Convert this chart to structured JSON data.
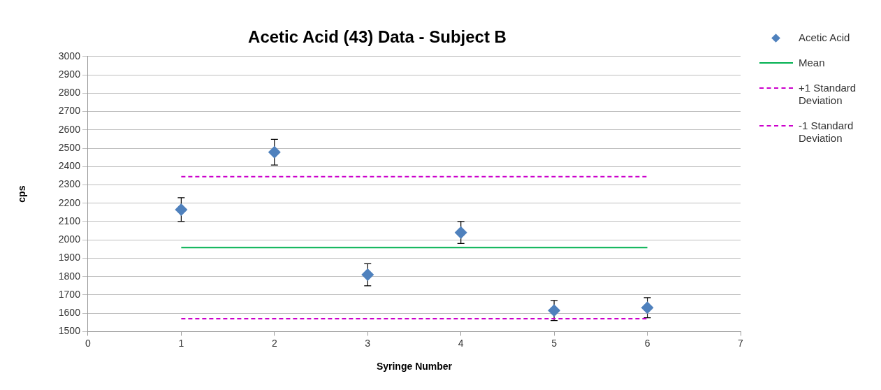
{
  "chart_data": {
    "type": "scatter",
    "title": "Acetic Acid (43) Data - Subject B",
    "xlabel": "Syringe Number",
    "ylabel": "cps",
    "xlim": [
      0,
      7
    ],
    "xticks": [
      0,
      1,
      2,
      3,
      4,
      5,
      6,
      7
    ],
    "ylim": [
      1500,
      3000
    ],
    "yticks": [
      1500,
      1600,
      1700,
      1800,
      1900,
      2000,
      2100,
      2200,
      2300,
      2400,
      2500,
      2600,
      2700,
      2800,
      2900,
      3000
    ],
    "grid": "y",
    "legend": "right",
    "marker": "diamond",
    "series": [
      {
        "name": "Acetic Acid",
        "color": "#4f81bd",
        "x": [
          1,
          2,
          3,
          4,
          5,
          6
        ],
        "values": [
          2165,
          2478,
          1810,
          2040,
          1615,
          1630
        ],
        "errors": [
          65,
          70,
          60,
          60,
          55,
          55
        ]
      },
      {
        "name": "Mean",
        "type": "line",
        "color": "#00b050",
        "marker": "none",
        "line_style": "solid",
        "x": [
          1,
          6
        ],
        "values": [
          1958,
          1958
        ]
      },
      {
        "name": "+1 Standard Deviation",
        "type": "line",
        "color": "#cc00cc",
        "marker": "none",
        "line_style": "dashed",
        "x": [
          1,
          6
        ],
        "values": [
          2345,
          2345
        ]
      },
      {
        "name": "-1 Standard Deviation",
        "type": "line",
        "color": "#cc00cc",
        "marker": "none",
        "line_style": "dashed",
        "x": [
          1,
          6
        ],
        "values": [
          1570,
          1570
        ]
      }
    ]
  }
}
